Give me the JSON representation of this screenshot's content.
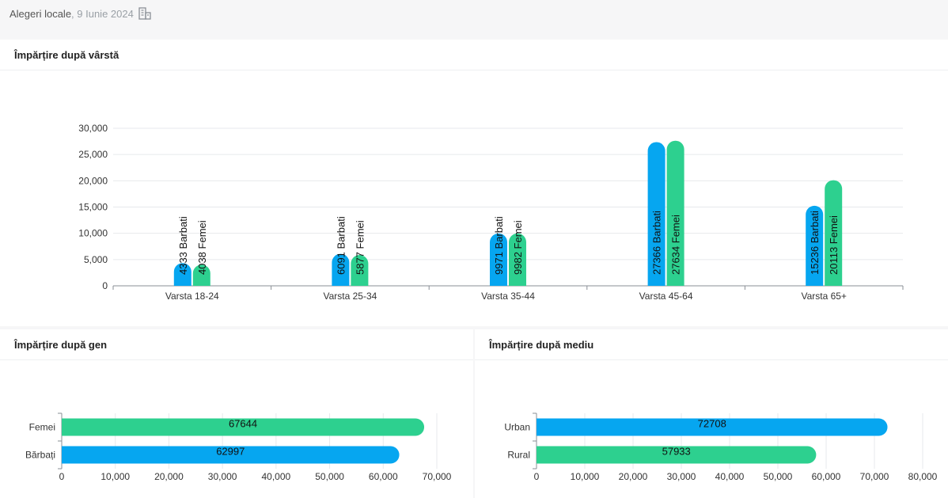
{
  "header": {
    "title": "Alegeri locale",
    "date": ", 9 Iunie 2024"
  },
  "colors": {
    "blue": "#06a6f0",
    "green": "#2dd08f",
    "axis": "#8a8f96",
    "grid": "#e7e9ec"
  },
  "panels": {
    "age_title": "Împărțire după vârstă",
    "gender_title": "Împărțire după gen",
    "environment_title": "Împărțire după mediu"
  },
  "chart_data": [
    {
      "type": "bar",
      "title": "Împărțire după vârstă",
      "categories": [
        "Varsta 18-24",
        "Varsta 25-34",
        "Varsta 35-44",
        "Varsta 45-64",
        "Varsta 65+"
      ],
      "series": [
        {
          "name": "Barbati",
          "color": "#06a6f0",
          "values": [
            4333,
            6091,
            9971,
            27366,
            15236
          ]
        },
        {
          "name": "Femei",
          "color": "#2dd08f",
          "values": [
            4038,
            5877,
            9982,
            27634,
            20113
          ]
        }
      ],
      "y_ticks": [
        "0",
        "5,000",
        "10,000",
        "15,000",
        "20,000",
        "25,000",
        "30,000"
      ],
      "ylim": [
        0,
        30000
      ],
      "grid": true
    },
    {
      "type": "bar",
      "orientation": "horizontal",
      "title": "Împărțire după gen",
      "categories": [
        "Femei",
        "Bărbați"
      ],
      "values": [
        67644,
        62997
      ],
      "colors": [
        "#2dd08f",
        "#06a6f0"
      ],
      "x_ticks": [
        "0",
        "10,000",
        "20,000",
        "30,000",
        "40,000",
        "50,000",
        "60,000",
        "70,000"
      ],
      "xlim": [
        0,
        70000
      ],
      "grid": true
    },
    {
      "type": "bar",
      "orientation": "horizontal",
      "title": "Împărțire după mediu",
      "categories": [
        "Urban",
        "Rural"
      ],
      "values": [
        72708,
        57933
      ],
      "colors": [
        "#06a6f0",
        "#2dd08f"
      ],
      "x_ticks": [
        "0",
        "10,000",
        "20,000",
        "30,000",
        "40,000",
        "50,000",
        "60,000",
        "70,000",
        "80,000"
      ],
      "xlim": [
        0,
        80000
      ],
      "grid": true
    }
  ]
}
